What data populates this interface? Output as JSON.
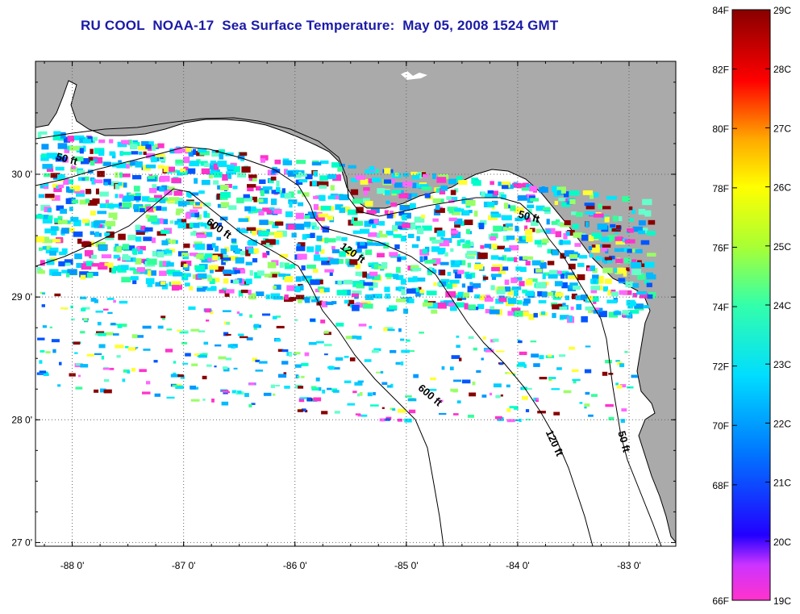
{
  "title": "RU COOL  NOAA-17  Sea Surface Temperature:  May 05, 2008 1524 GMT",
  "map": {
    "lon_range": [
      -88.33,
      -82.58
    ],
    "lat_range": [
      26.97,
      30.92
    ],
    "lon_ticks": [
      {
        "value": -88,
        "label": "-88 0'"
      },
      {
        "value": -87,
        "label": "-87 0'"
      },
      {
        "value": -86,
        "label": "-86 0'"
      },
      {
        "value": -85,
        "label": "-85 0'"
      },
      {
        "value": -84,
        "label": "-84 0'"
      },
      {
        "value": -83,
        "label": "-83 0'"
      }
    ],
    "lat_ticks": [
      {
        "value": 27,
        "label": "27 0'"
      },
      {
        "value": 28,
        "label": "28 0'"
      },
      {
        "value": 29,
        "label": "29 0'"
      },
      {
        "value": 30,
        "label": "30 0'"
      }
    ],
    "contour_labels": [
      {
        "text": "50 ft",
        "lon": -88.15,
        "lat": 30.12,
        "rotate": 15
      },
      {
        "text": "600 ft",
        "lon": -86.8,
        "lat": 29.6,
        "rotate": 35
      },
      {
        "text": "120 ft",
        "lon": -85.6,
        "lat": 29.4,
        "rotate": 35
      },
      {
        "text": "50 ft",
        "lon": -84.0,
        "lat": 29.65,
        "rotate": 15
      },
      {
        "text": "600 ft",
        "lon": -84.9,
        "lat": 28.25,
        "rotate": 40
      },
      {
        "text": "120 ft",
        "lon": -83.75,
        "lat": 27.9,
        "rotate": 65
      },
      {
        "text": "50 ft",
        "lon": -83.1,
        "lat": 27.9,
        "rotate": 75
      }
    ],
    "land_color": "#aaaaaa",
    "grid": "dotted"
  },
  "colorbar": {
    "f_ticks": [
      "84F",
      "82F",
      "80F",
      "78F",
      "76F",
      "74F",
      "72F",
      "70F",
      "68F",
      "66F"
    ],
    "c_ticks": [
      "29C",
      "28C",
      "27C",
      "26C",
      "25C",
      "24C",
      "23C",
      "22C",
      "21C",
      "20C",
      "19C"
    ],
    "range_c": [
      19,
      29
    ]
  }
}
